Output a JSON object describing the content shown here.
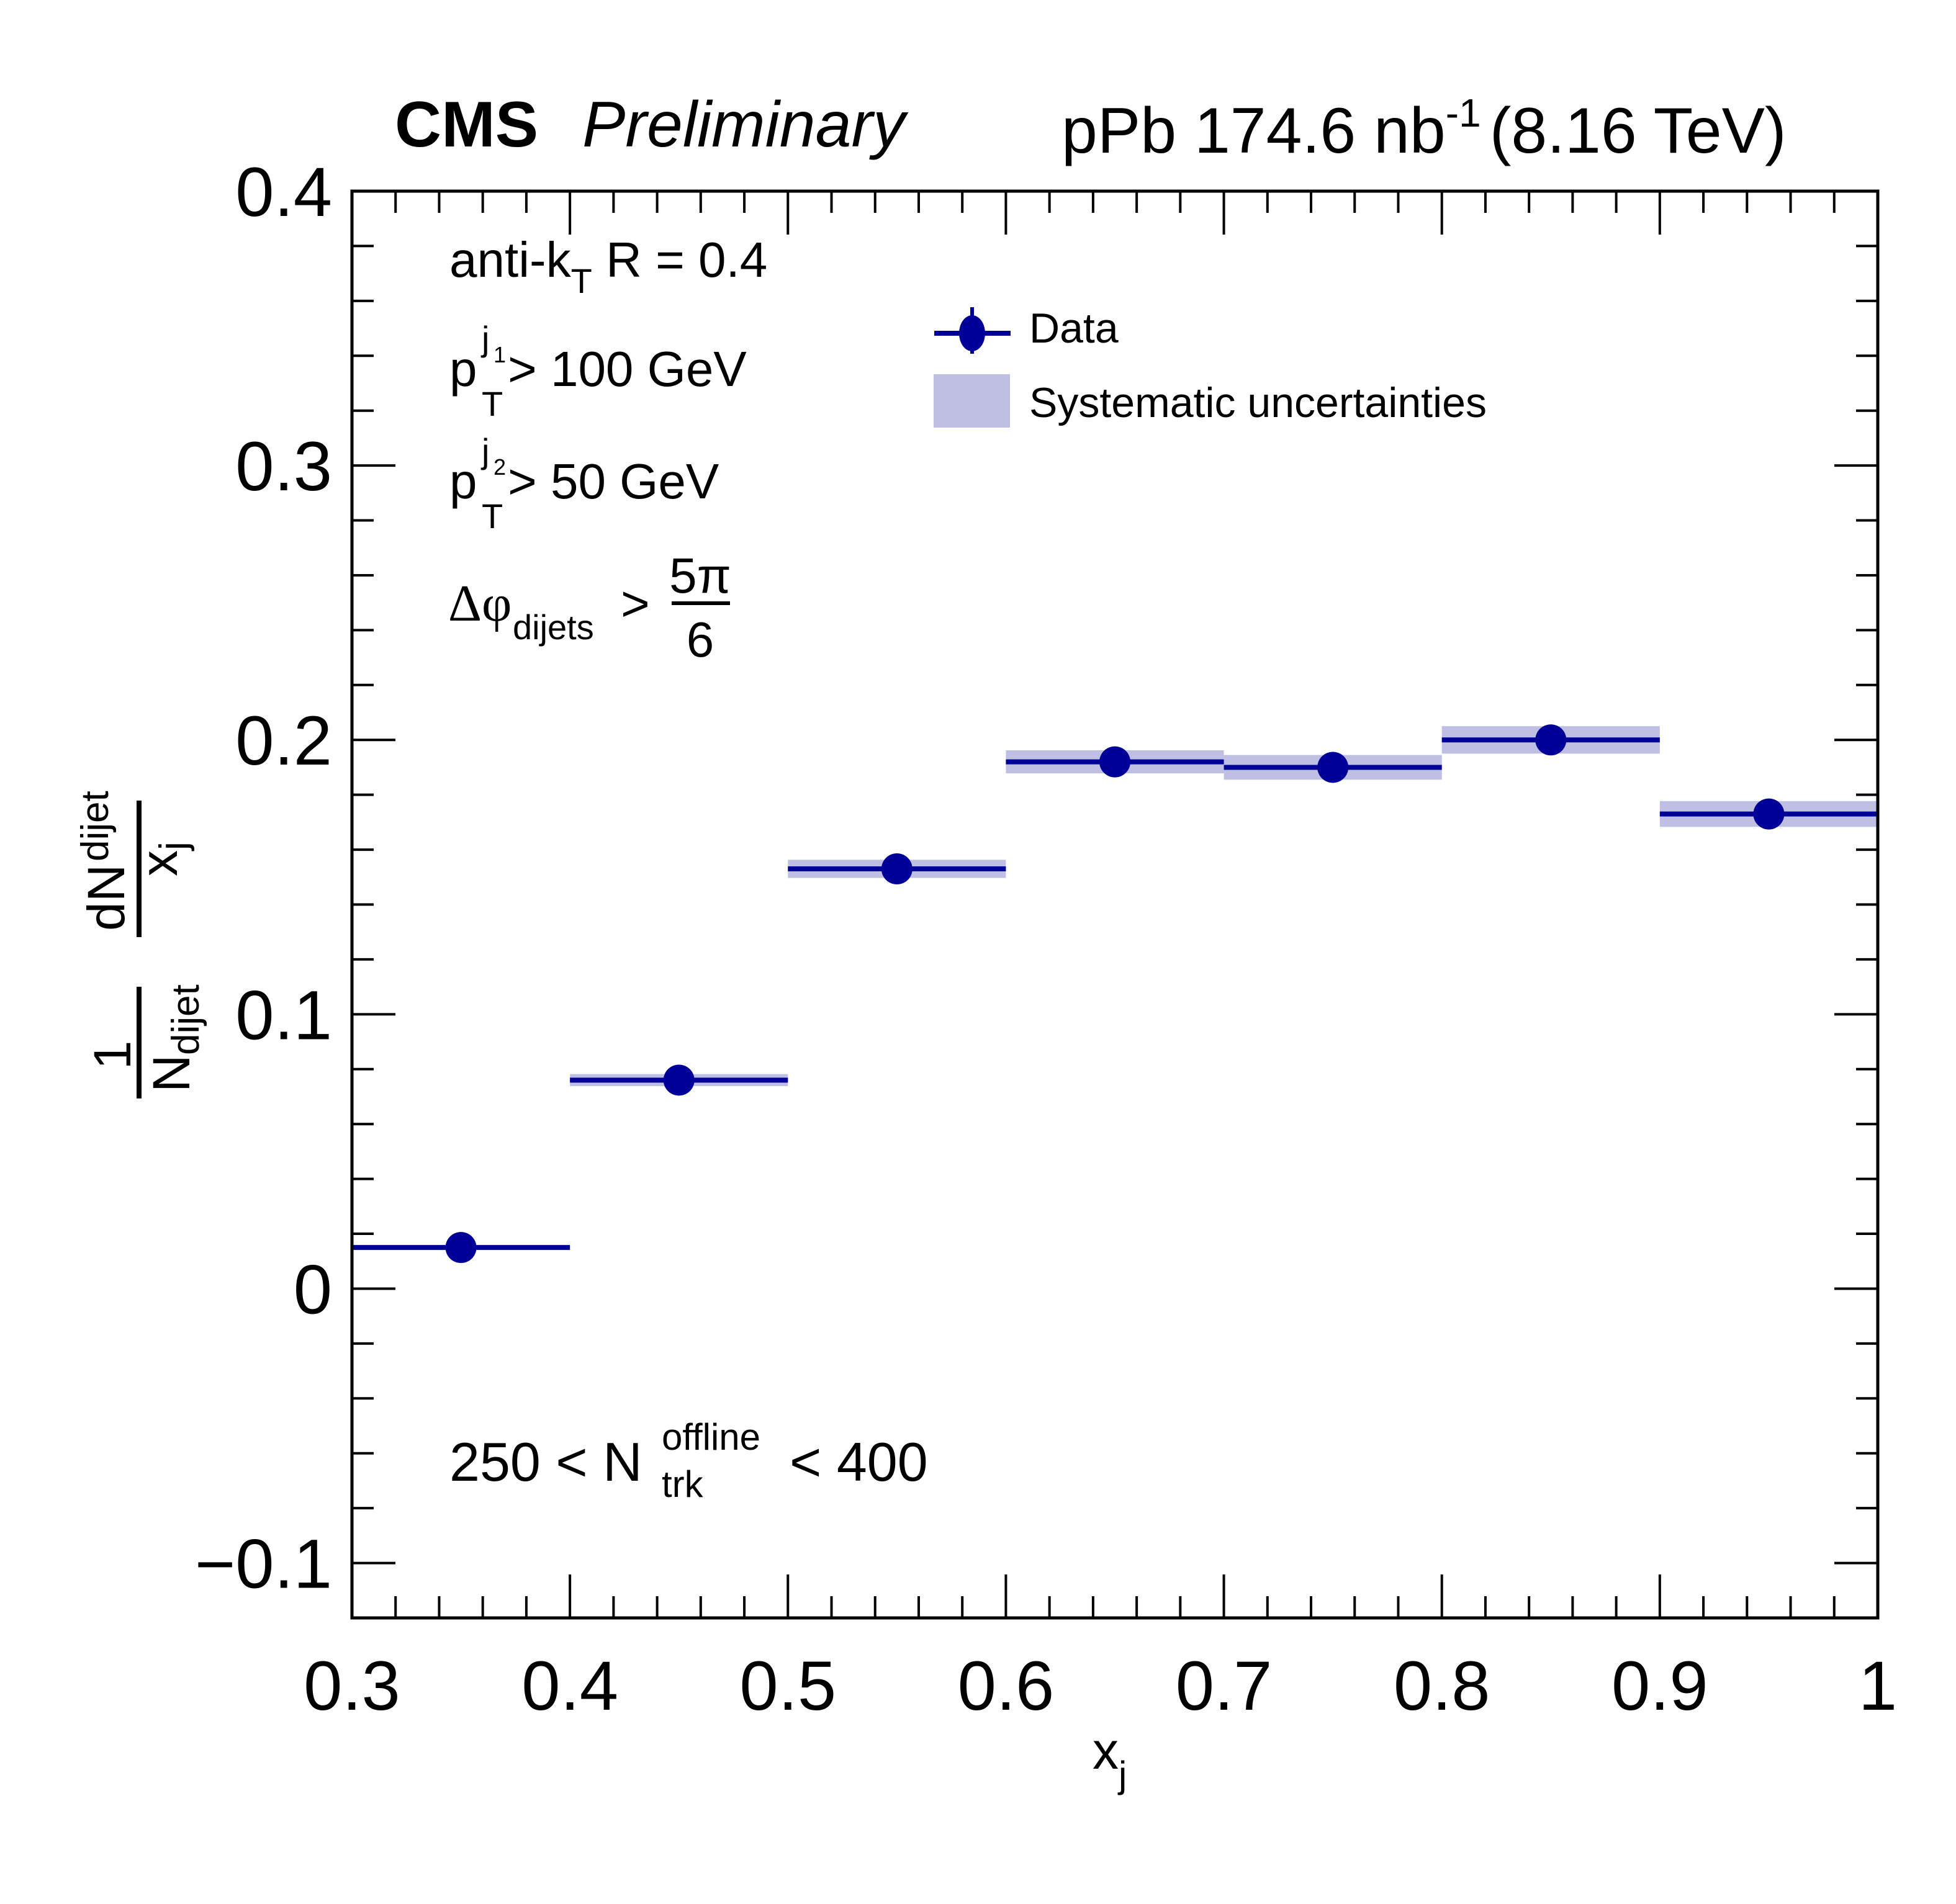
{
  "header": {
    "experiment": "CMS",
    "status": "Preliminary",
    "lumi_prefix": "pPb 174.6 nb",
    "lumi_exp": "-1",
    "energy": "(8.16 TeV)"
  },
  "annotations": {
    "algo": {
      "main": "anti-k",
      "sub": "T",
      "rest": " R = 0.4"
    },
    "pt1": {
      "p": "p",
      "sub": "T",
      "sup": "j",
      "supsub": "1",
      "rest": " > 100 GeV"
    },
    "pt2": {
      "p": "p",
      "sub": "T",
      "sup": "j",
      "supsub": "2",
      "rest": " > 50 GeV"
    },
    "dphi": {
      "main": "Δφ",
      "sub": "dijets",
      "gt": " > ",
      "num": "5π",
      "den": "6"
    },
    "mult": {
      "pre": "250 < N",
      "sup": "offline",
      "sub": "trk",
      "post": " < 400"
    }
  },
  "legend": {
    "data_label": "Data",
    "syst_label": "Systematic uncertainties"
  },
  "colors": {
    "data": "#000099",
    "syst": "#bfbfe3",
    "frame": "#000000"
  },
  "chart_data": {
    "type": "scatter",
    "title": "CMS Preliminary — pPb 174.6 nb^-1 (8.16 TeV)",
    "xlabel": "x_j",
    "ylabel_num": {
      "main": "dN",
      "sub": "dijet",
      "den_main": "x",
      "den_sub": "j"
    },
    "ylabel_pre": {
      "num": "1",
      "den_main": "N",
      "den_sub": "dijet"
    },
    "xlim": [
      0.3,
      1.0
    ],
    "ylim": [
      -0.12,
      0.4
    ],
    "grid": false,
    "legend_position": "top-center",
    "x_ticks": [
      "0.3",
      "0.4",
      "0.5",
      "0.6",
      "0.7",
      "0.8",
      "0.9",
      "1"
    ],
    "x_tick_values": [
      0.3,
      0.4,
      0.5,
      0.6,
      0.7,
      0.8,
      0.9,
      1.0
    ],
    "y_ticks": [
      "−0.1",
      "0",
      "0.1",
      "0.2",
      "0.3",
      "0.4"
    ],
    "y_tick_values": [
      -0.1,
      0.0,
      0.1,
      0.2,
      0.3,
      0.4
    ],
    "bin_edges": [
      0.3,
      0.4,
      0.5,
      0.6,
      0.7,
      0.8,
      0.9,
      1.0
    ],
    "series": [
      {
        "name": "Data",
        "x": [
          0.35,
          0.45,
          0.55,
          0.65,
          0.75,
          0.85,
          0.95
        ],
        "y": [
          0.015,
          0.076,
          0.153,
          0.192,
          0.19,
          0.2,
          0.173
        ],
        "syst": [
          0.0005,
          0.0022,
          0.0033,
          0.0042,
          0.0045,
          0.005,
          0.0047
        ]
      }
    ]
  }
}
